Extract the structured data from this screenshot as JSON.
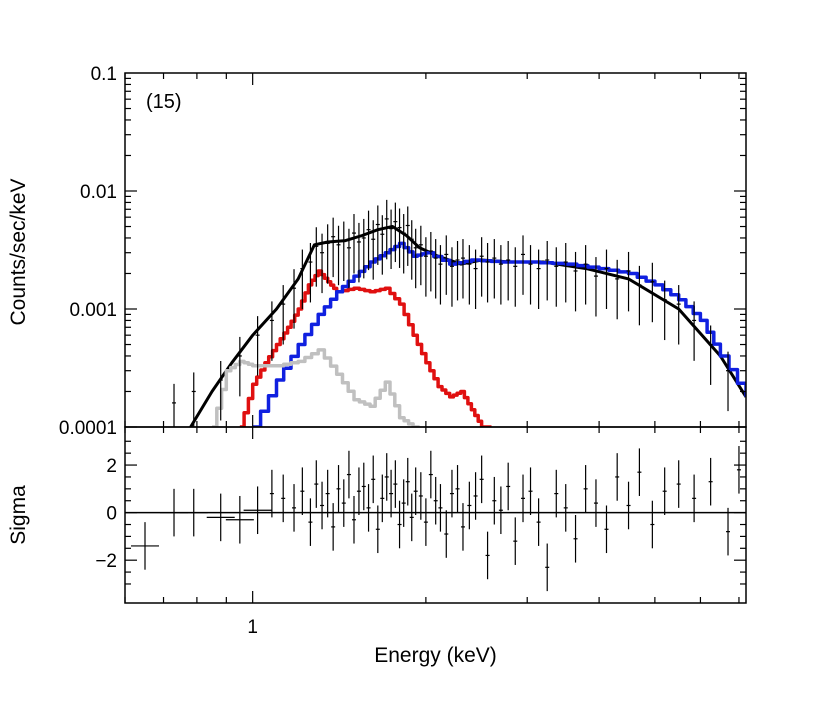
{
  "chart_data": {
    "type": "line",
    "title": "",
    "annotation": "(15)",
    "xlabel": "Energy (keV)",
    "xscale": "log",
    "xlim": [
      0.6,
      7.2
    ],
    "x_tick_labels": [
      {
        "value": 1,
        "label": "1"
      }
    ],
    "top_panel": {
      "ylabel": "Counts/sec/keV",
      "yscale": "log",
      "ylim": [
        0.0001,
        0.1
      ],
      "y_tick_labels": [
        {
          "value": 0.1,
          "label": "0.1"
        },
        {
          "value": 0.01,
          "label": "0.01"
        },
        {
          "value": 0.001,
          "label": "0.001"
        },
        {
          "value": 0.0001,
          "label": "0.0001"
        }
      ],
      "series": [
        {
          "name": "total model",
          "color": "#000000",
          "style": "line",
          "x": [
            0.78,
            0.85,
            0.92,
            1.0,
            1.1,
            1.2,
            1.28,
            1.35,
            1.45,
            1.55,
            1.65,
            1.75,
            1.85,
            1.95,
            2.1,
            2.3,
            2.5,
            2.8,
            3.2,
            3.8,
            4.5,
            5.5,
            6.5,
            7.2
          ],
          "y": [
            0.0001,
            0.0002,
            0.00035,
            0.0006,
            0.001,
            0.0018,
            0.0035,
            0.0037,
            0.0038,
            0.0042,
            0.0047,
            0.005,
            0.0042,
            0.0033,
            0.0028,
            0.0024,
            0.0026,
            0.0025,
            0.0025,
            0.0022,
            0.0018,
            0.001,
            0.0004,
            0.00018
          ]
        },
        {
          "name": "component (red)",
          "color": "#e01010",
          "style": "histogram",
          "x": [
            0.95,
            1.0,
            1.05,
            1.1,
            1.15,
            1.2,
            1.25,
            1.3,
            1.35,
            1.4,
            1.5,
            1.6,
            1.7,
            1.8,
            1.9,
            2.0,
            2.1,
            2.2,
            2.3,
            2.4,
            2.5,
            2.6
          ],
          "y": [
            0.0001,
            0.00023,
            0.00035,
            0.0005,
            0.0007,
            0.001,
            0.0016,
            0.0021,
            0.0017,
            0.0014,
            0.0015,
            0.0014,
            0.0015,
            0.0011,
            0.0006,
            0.00035,
            0.00022,
            0.00018,
            0.0002,
            0.00014,
            0.0001,
            0.0001
          ]
        },
        {
          "name": "component (blue)",
          "color": "#1020e0",
          "style": "histogram",
          "x": [
            1.0,
            1.1,
            1.2,
            1.3,
            1.4,
            1.5,
            1.6,
            1.7,
            1.8,
            1.9,
            2.0,
            2.2,
            2.4,
            2.7,
            3.0,
            3.5,
            4.0,
            4.5,
            5.0,
            5.5,
            6.0,
            6.5,
            7.2
          ],
          "y": [
            0.0001,
            0.00025,
            0.0005,
            0.0009,
            0.0014,
            0.0019,
            0.0025,
            0.003,
            0.0036,
            0.0028,
            0.003,
            0.0024,
            0.0026,
            0.0025,
            0.0025,
            0.0024,
            0.0022,
            0.002,
            0.0016,
            0.0012,
            0.0008,
            0.0004,
            0.00018
          ]
        },
        {
          "name": "component (gray)",
          "color": "#c0c0c0",
          "style": "histogram",
          "x": [
            0.85,
            0.9,
            0.95,
            1.0,
            1.1,
            1.2,
            1.3,
            1.4,
            1.5,
            1.6,
            1.7,
            1.8,
            1.9,
            1.95
          ],
          "y": [
            0.0001,
            0.0003,
            0.00036,
            0.00033,
            0.00033,
            0.00036,
            0.00045,
            0.00028,
            0.00017,
            0.00015,
            0.00024,
            0.00012,
            0.0001,
            0.0001
          ]
        }
      ],
      "data_points": {
        "x": [
          0.73,
          0.79,
          0.88,
          0.95,
          1.02,
          1.08,
          1.13,
          1.18,
          1.22,
          1.26,
          1.29,
          1.32,
          1.35,
          1.38,
          1.41,
          1.44,
          1.47,
          1.5,
          1.53,
          1.56,
          1.59,
          1.62,
          1.65,
          1.68,
          1.71,
          1.74,
          1.77,
          1.8,
          1.83,
          1.86,
          1.89,
          1.92,
          1.96,
          2.0,
          2.04,
          2.08,
          2.12,
          2.17,
          2.22,
          2.27,
          2.32,
          2.38,
          2.44,
          2.5,
          2.56,
          2.63,
          2.7,
          2.78,
          2.86,
          2.95,
          3.04,
          3.14,
          3.25,
          3.37,
          3.5,
          3.64,
          3.79,
          3.95,
          4.12,
          4.3,
          4.5,
          4.7,
          4.95,
          5.2,
          5.5,
          5.85,
          6.25,
          6.7
        ],
        "y": [
          0.00016,
          0.0002,
          0.00025,
          0.0004,
          0.0006,
          0.0008,
          0.0011,
          0.0015,
          0.0022,
          0.0025,
          0.0034,
          0.003,
          0.0036,
          0.0041,
          0.0035,
          0.0038,
          0.0033,
          0.0044,
          0.0037,
          0.004,
          0.0047,
          0.0039,
          0.0052,
          0.0043,
          0.0058,
          0.0048,
          0.0055,
          0.0049,
          0.0044,
          0.0051,
          0.0039,
          0.0033,
          0.0035,
          0.0028,
          0.0031,
          0.0027,
          0.0024,
          0.0029,
          0.0023,
          0.0026,
          0.0027,
          0.0024,
          0.0022,
          0.0028,
          0.0025,
          0.0027,
          0.0024,
          0.0026,
          0.0023,
          0.0029,
          0.0024,
          0.0022,
          0.0026,
          0.0023,
          0.0025,
          0.0021,
          0.0024,
          0.0019,
          0.0022,
          0.0018,
          0.0021,
          0.0016,
          0.0017,
          0.0012,
          0.0011,
          0.0008,
          0.0005,
          0.0003
        ]
      }
    },
    "bottom_panel": {
      "ylabel": "Sigma",
      "ylim": [
        -3.8,
        3.6
      ],
      "y_tick_labels": [
        {
          "value": 2,
          "label": "2"
        },
        {
          "value": 0,
          "label": "0"
        },
        {
          "value": -2,
          "label": "−2"
        }
      ],
      "zero_line": 0,
      "x": [
        0.65,
        0.73,
        0.79,
        0.88,
        0.95,
        1.02,
        1.08,
        1.13,
        1.18,
        1.22,
        1.26,
        1.29,
        1.32,
        1.35,
        1.38,
        1.41,
        1.44,
        1.47,
        1.5,
        1.53,
        1.56,
        1.59,
        1.62,
        1.65,
        1.68,
        1.71,
        1.74,
        1.77,
        1.8,
        1.83,
        1.86,
        1.89,
        1.92,
        1.96,
        2.0,
        2.04,
        2.08,
        2.12,
        2.17,
        2.22,
        2.27,
        2.32,
        2.38,
        2.44,
        2.5,
        2.56,
        2.63,
        2.7,
        2.78,
        2.86,
        2.95,
        3.04,
        3.14,
        3.25,
        3.37,
        3.5,
        3.64,
        3.79,
        3.95,
        4.12,
        4.3,
        4.5,
        4.7,
        4.95,
        5.2,
        5.5,
        5.85,
        6.25,
        6.7,
        7.0
      ],
      "y": [
        -1.4,
        0.0,
        0.0,
        -0.2,
        -0.3,
        0.1,
        0.8,
        0.6,
        0.2,
        0.9,
        -0.4,
        1.2,
        0.3,
        0.8,
        -0.6,
        1.0,
        0.4,
        1.6,
        -0.3,
        0.9,
        1.1,
        0.2,
        1.4,
        -0.7,
        0.6,
        1.5,
        0.8,
        1.2,
        -0.5,
        0.4,
        1.3,
        -0.2,
        0.9,
        0.7,
        -0.4,
        1.6,
        0.5,
        0.2,
        -0.9,
        0.8,
        1.0,
        -0.6,
        0.3,
        0.7,
        1.4,
        -1.8,
        0.5,
        0.1,
        1.1,
        -1.2,
        0.6,
        0.9,
        -0.4,
        -2.3,
        0.8,
        0.2,
        -1.1,
        1.0,
        0.4,
        -0.7,
        1.5,
        0.3,
        1.7,
        -0.5,
        0.9,
        1.2,
        0.6,
        1.3,
        -0.8,
        1.8
      ]
    }
  }
}
